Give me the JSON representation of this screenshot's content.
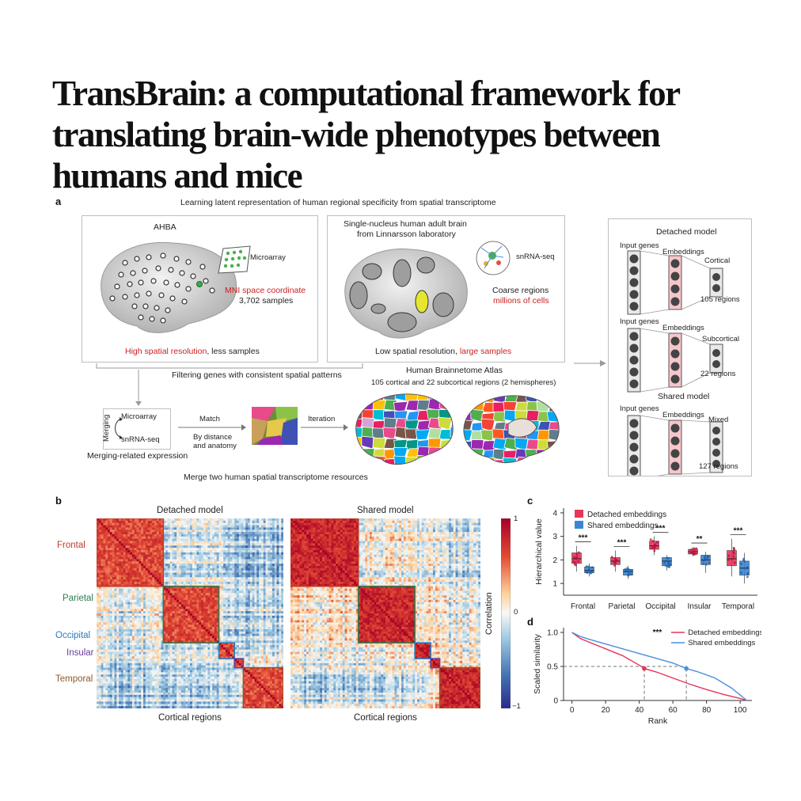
{
  "title": {
    "line1": "TransBrain: a computational framework for",
    "line2": "translating brain-wide phenotypes between",
    "line3": "humans and mice"
  },
  "panel_a": {
    "label": "a",
    "heading": "Learning latent representation of human regional specificity from spatial transcriptome",
    "ahba": {
      "title": "AHBA",
      "microarray": "Microarray",
      "mni": "MNI space coordinate",
      "samples": "3,702 samples",
      "resolution_red": "High spatial resolution",
      "resolution_rest": ", less samples"
    },
    "snrna": {
      "title_l1": "Single-nucleus human adult brain",
      "title_l2": "from Linnarsson laboratory",
      "method": "snRNA-seq",
      "coarse": "Coarse regions",
      "cells": "millions of cells",
      "resolution_black": "Low spatial resolution, ",
      "resolution_red": "large samples"
    },
    "filter": "Filtering genes with consistent spatial patterns",
    "atlas_l1": "Human Brainnetome Atlas",
    "atlas_l2": "105 cortical and 22 subcortical regions (2 hemispheres)",
    "merge": {
      "side": "Merging",
      "microarray": "Microarray",
      "snrna": "snRNA-seq",
      "caption": "Merging-related expression",
      "match": "Match",
      "by_l1": "By distance",
      "by_l2": "and anatomy",
      "iteration": "Iteration"
    },
    "bottom": "Merge two human spatial transcriptome resources",
    "models": {
      "detached_title": "Detached model",
      "shared_title": "Shared model",
      "input": "Input genes",
      "emb": "Embeddings",
      "m1_out": "Cortical",
      "m1_n": "105 regions",
      "m2_out": "Subcortical",
      "m2_n": "22 regions",
      "m3_out": "Mixed",
      "m3_n": "127 regions"
    }
  },
  "panel_b": {
    "label": "b",
    "left_title": "Detached model",
    "right_title": "Shared model",
    "xlabel": "Cortical regions",
    "regions": [
      "Frontal",
      "Parietal",
      "Occipital",
      "Insular",
      "Temporal"
    ],
    "region_colors": [
      "#c0392b",
      "#2e7d4f",
      "#2b7bbf",
      "#6a3d9a",
      "#8b5a2b"
    ],
    "colorbar_label": "Correlation",
    "colorbar_ticks": [
      "1",
      "0",
      "−1"
    ]
  },
  "chart_data": [
    {
      "type": "box",
      "panel": "c",
      "categories": [
        "Frontal",
        "Parietal",
        "Occipital",
        "Insular",
        "Temporal"
      ],
      "ylabel": "Hierarchical value",
      "ylim": [
        0.5,
        4.2
      ],
      "yticks": [
        "1",
        "2",
        "3",
        "4"
      ],
      "significance": [
        "***",
        "***",
        "***",
        "**",
        "***"
      ],
      "series": [
        {
          "name": "Detached embeddings",
          "color": "#e8335b",
          "boxes": [
            {
              "min": 1.5,
              "q1": 1.85,
              "median": 2.05,
              "q3": 2.3,
              "max": 2.6
            },
            {
              "min": 1.5,
              "q1": 1.8,
              "median": 1.95,
              "q3": 2.1,
              "max": 2.4
            },
            {
              "min": 2.2,
              "q1": 2.45,
              "median": 2.6,
              "q3": 2.8,
              "max": 3.0
            },
            {
              "min": 2.15,
              "q1": 2.25,
              "median": 2.35,
              "q3": 2.45,
              "max": 2.55
            },
            {
              "min": 1.3,
              "q1": 1.75,
              "median": 2.05,
              "q3": 2.4,
              "max": 2.9
            }
          ]
        },
        {
          "name": "Shared embeddings",
          "color": "#3a86d4",
          "boxes": [
            {
              "min": 1.3,
              "q1": 1.45,
              "median": 1.55,
              "q3": 1.7,
              "max": 1.85
            },
            {
              "min": 1.2,
              "q1": 1.35,
              "median": 1.5,
              "q3": 1.6,
              "max": 1.75
            },
            {
              "min": 1.55,
              "q1": 1.75,
              "median": 1.95,
              "q3": 2.1,
              "max": 2.2
            },
            {
              "min": 1.45,
              "q1": 1.8,
              "median": 2.0,
              "q3": 2.2,
              "max": 2.35
            },
            {
              "min": 1.0,
              "q1": 1.35,
              "median": 1.65,
              "q3": 1.95,
              "max": 2.3
            }
          ]
        }
      ]
    },
    {
      "type": "line",
      "panel": "d",
      "xlabel": "Rank",
      "ylabel": "Scaled similarity",
      "xlim": [
        -5,
        107
      ],
      "ylim": [
        0,
        1.07
      ],
      "xticks": [
        "0",
        "20",
        "40",
        "60",
        "80",
        "100"
      ],
      "yticks": [
        "0",
        "0.5",
        "1.0"
      ],
      "significance": "***",
      "series": [
        {
          "name": "Detached embeddings",
          "color": "#e8335b",
          "x": [
            0,
            5,
            10,
            20,
            30,
            40,
            43,
            50,
            60,
            70,
            80,
            90,
            100,
            104
          ],
          "y": [
            1.0,
            0.91,
            0.86,
            0.76,
            0.66,
            0.52,
            0.47,
            0.42,
            0.33,
            0.24,
            0.16,
            0.09,
            0.03,
            0.0
          ]
        },
        {
          "name": "Shared embeddings",
          "color": "#4a90d9",
          "x": [
            0,
            5,
            10,
            20,
            30,
            40,
            50,
            60,
            68,
            75,
            85,
            95,
            100,
            104
          ],
          "y": [
            1.0,
            0.94,
            0.9,
            0.83,
            0.76,
            0.69,
            0.62,
            0.55,
            0.47,
            0.42,
            0.33,
            0.18,
            0.08,
            0.0
          ]
        }
      ],
      "markers": [
        {
          "x": 43,
          "y": 0.47,
          "color": "#e8335b"
        },
        {
          "x": 68,
          "y": 0.47,
          "color": "#4a90d9"
        }
      ],
      "reference_y": 0.5
    }
  ]
}
